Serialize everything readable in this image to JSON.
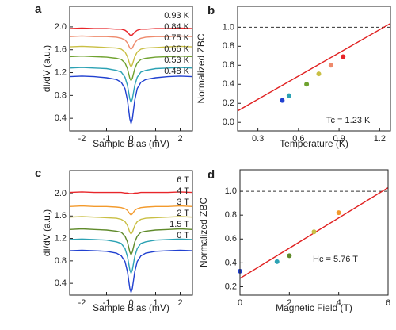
{
  "chart_data": [
    {
      "type": "line",
      "panel_label": "a",
      "xlabel": "Sample Bias (mV)",
      "ylabel": "dI/dV (a.u.)",
      "xlim": [
        -2.5,
        2.5
      ],
      "xticks": [
        -2,
        -1,
        0,
        1,
        2
      ],
      "ylim": [
        0.18,
        2.36
      ],
      "yticks": [
        0.4,
        0.8,
        1.2,
        1.6,
        {
          "value": 2,
          "label": "2.0"
        }
      ],
      "x": [
        -2.5,
        -2,
        -1.5,
        -1,
        -0.6,
        -0.4,
        -0.25,
        -0.15,
        -0.05,
        0,
        0.05,
        0.15,
        0.25,
        0.4,
        0.6,
        1,
        1.5,
        2,
        2.5
      ],
      "series": [
        {
          "name": "0.93 K",
          "color": "#e8262a",
          "values": [
            1.97,
            1.98,
            1.97,
            1.97,
            1.96,
            1.96,
            1.94,
            1.91,
            1.86,
            1.85,
            1.86,
            1.91,
            1.94,
            1.96,
            1.96,
            1.97,
            1.97,
            1.98,
            1.97
          ]
        },
        {
          "name": "0.84 K",
          "color": "#ee8a6c",
          "values": [
            1.83,
            1.84,
            1.83,
            1.83,
            1.82,
            1.8,
            1.77,
            1.72,
            1.63,
            1.61,
            1.63,
            1.72,
            1.77,
            1.8,
            1.82,
            1.83,
            1.83,
            1.84,
            1.83
          ]
        },
        {
          "name": "0.75 K",
          "color": "#c9bf44",
          "values": [
            1.65,
            1.66,
            1.65,
            1.64,
            1.63,
            1.61,
            1.56,
            1.48,
            1.34,
            1.3,
            1.34,
            1.48,
            1.56,
            1.61,
            1.63,
            1.64,
            1.65,
            1.66,
            1.65
          ]
        },
        {
          "name": "0.66 K",
          "color": "#6fa22f",
          "values": [
            1.48,
            1.49,
            1.48,
            1.47,
            1.45,
            1.43,
            1.37,
            1.27,
            1.1,
            1.06,
            1.1,
            1.27,
            1.37,
            1.43,
            1.45,
            1.47,
            1.48,
            1.49,
            1.48
          ]
        },
        {
          "name": "0.53 K",
          "color": "#2ca2b4",
          "values": [
            1.28,
            1.29,
            1.28,
            1.27,
            1.24,
            1.21,
            1.12,
            0.98,
            0.74,
            0.68,
            0.74,
            0.98,
            1.12,
            1.21,
            1.24,
            1.27,
            1.28,
            1.29,
            1.28
          ]
        },
        {
          "name": "0.48 K",
          "color": "#2040d0",
          "values": [
            1.13,
            1.14,
            1.13,
            1.11,
            1.08,
            1.03,
            0.92,
            0.72,
            0.39,
            0.31,
            0.39,
            0.72,
            0.92,
            1.03,
            1.08,
            1.11,
            1.13,
            1.14,
            1.13
          ]
        }
      ]
    },
    {
      "type": "scatter",
      "panel_label": "b",
      "xlabel": "Temperature (K)",
      "ylabel": "Normalized ZBC",
      "xlim": [
        0.15,
        1.28
      ],
      "xticks": [
        0.3,
        0.6,
        0.9,
        1.2
      ],
      "ylim": [
        -0.09,
        1.22
      ],
      "yticks": [
        {
          "value": 0,
          "label": "0.0"
        },
        0.2,
        0.4,
        0.6,
        0.8,
        {
          "value": 1,
          "label": "1.0"
        }
      ],
      "x": [
        0.48,
        0.53,
        0.66,
        0.75,
        0.84,
        0.93
      ],
      "values": [
        0.23,
        0.28,
        0.4,
        0.51,
        0.6,
        0.69
      ],
      "colors": [
        "#2040d0",
        "#2ca2b4",
        "#6fa22f",
        "#c9bf44",
        "#ee8a6c",
        "#e8262a"
      ],
      "fit_line": {
        "color": "#e02020",
        "x": [
          0.15,
          1.28
        ],
        "y": [
          0.12,
          1.04
        ]
      },
      "reference_line": 1,
      "annotation": "Tc = 1.23 K"
    },
    {
      "type": "line",
      "panel_label": "c",
      "xlabel": "Sample Bias (mV)",
      "ylabel": "dI/dV (a.u.)",
      "xlim": [
        -2.5,
        2.5
      ],
      "xticks": [
        -2,
        -1,
        0,
        1,
        2
      ],
      "ylim": [
        0.19,
        2.41
      ],
      "yticks": [
        0.4,
        0.8,
        1.2,
        1.6,
        {
          "value": 2,
          "label": "2.0"
        }
      ],
      "x": [
        -2.5,
        -2,
        -1.5,
        -1,
        -0.6,
        -0.4,
        -0.25,
        -0.15,
        -0.05,
        0,
        0.05,
        0.15,
        0.25,
        0.4,
        0.6,
        1,
        1.5,
        2,
        2.5
      ],
      "series": [
        {
          "name": "6 T",
          "color": "#e8262a",
          "values": [
            2.02,
            2.03,
            2.02,
            2.02,
            2.02,
            2.02,
            2.01,
            2.01,
            2.0,
            2.0,
            2.0,
            2.01,
            2.01,
            2.02,
            2.02,
            2.02,
            2.02,
            2.03,
            2.02
          ]
        },
        {
          "name": "4 T",
          "color": "#f39a2c",
          "values": [
            1.77,
            1.78,
            1.77,
            1.77,
            1.76,
            1.75,
            1.73,
            1.7,
            1.64,
            1.62,
            1.64,
            1.7,
            1.73,
            1.75,
            1.76,
            1.77,
            1.77,
            1.78,
            1.77
          ]
        },
        {
          "name": "3 T",
          "color": "#c9bf44",
          "values": [
            1.58,
            1.59,
            1.58,
            1.57,
            1.56,
            1.54,
            1.5,
            1.43,
            1.31,
            1.28,
            1.31,
            1.43,
            1.5,
            1.54,
            1.56,
            1.57,
            1.58,
            1.59,
            1.58
          ]
        },
        {
          "name": "2 T",
          "color": "#5f8a2a",
          "values": [
            1.36,
            1.37,
            1.36,
            1.35,
            1.33,
            1.31,
            1.24,
            1.14,
            0.96,
            0.91,
            0.96,
            1.14,
            1.24,
            1.31,
            1.33,
            1.35,
            1.36,
            1.37,
            1.36
          ]
        },
        {
          "name": "1.5 T",
          "color": "#2ca2b4",
          "values": [
            1.18,
            1.19,
            1.18,
            1.17,
            1.14,
            1.11,
            1.02,
            0.88,
            0.64,
            0.58,
            0.64,
            0.88,
            1.02,
            1.11,
            1.14,
            1.17,
            1.18,
            1.19,
            1.18
          ]
        },
        {
          "name": "0 T",
          "color": "#2040d0",
          "values": [
            0.98,
            0.99,
            0.98,
            0.97,
            0.94,
            0.89,
            0.79,
            0.61,
            0.31,
            0.24,
            0.31,
            0.61,
            0.79,
            0.89,
            0.94,
            0.97,
            0.98,
            0.99,
            0.98
          ]
        }
      ]
    },
    {
      "type": "scatter",
      "panel_label": "d",
      "xlabel": "Magnetic Field (T)",
      "ylabel": "Normalized ZBC",
      "xlim": [
        0,
        6
      ],
      "xticks": [
        0,
        2,
        4,
        6
      ],
      "ylim": [
        0.13,
        1.18
      ],
      "yticks": [
        0.2,
        0.4,
        0.6,
        0.8,
        {
          "value": 1,
          "label": "1.0"
        }
      ],
      "x": [
        0,
        1.5,
        2,
        3,
        4
      ],
      "values": [
        0.33,
        0.41,
        0.46,
        0.66,
        0.82
      ],
      "colors": [
        "#2040d0",
        "#2ca2b4",
        "#5f8a2a",
        "#c9bf44",
        "#f39a2c"
      ],
      "fit_line": {
        "color": "#e02020",
        "x": [
          0,
          6
        ],
        "y": [
          0.27,
          1.03
        ]
      },
      "reference_line": 1,
      "annotation": "Hc = 5.76 T"
    }
  ]
}
